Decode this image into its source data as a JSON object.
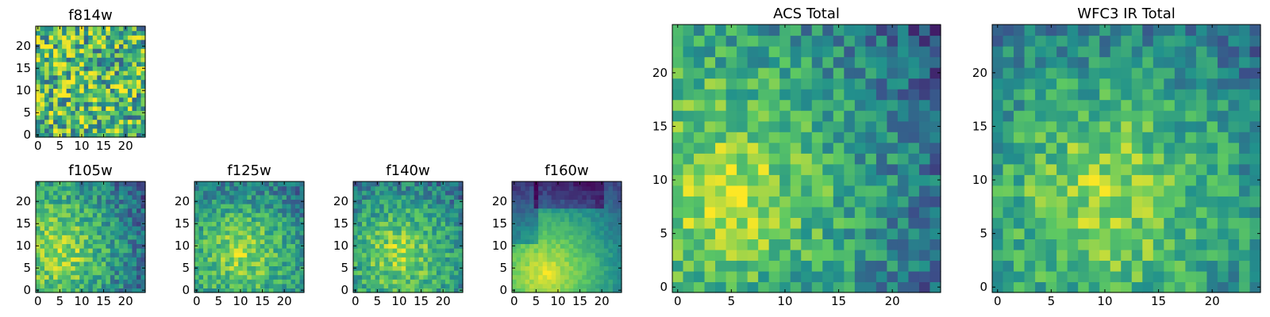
{
  "colormap": [
    "#440154",
    "#3b528b",
    "#21918c",
    "#5ec962",
    "#fde725"
  ],
  "frame_color": "#000000",
  "chart_data": [
    {
      "type": "heatmap",
      "title": "f814w",
      "size": 25,
      "seed": 11,
      "field": "noise",
      "xticks": [
        0,
        5,
        10,
        15,
        20
      ],
      "yticks": [
        0,
        5,
        10,
        15,
        20
      ],
      "xlim": [
        -0.5,
        24.5
      ],
      "ylim": [
        -0.5,
        24.5
      ]
    },
    {
      "type": "heatmap",
      "title": "f105w",
      "size": 25,
      "seed": 23,
      "field": "blob_lowleft",
      "xticks": [
        0,
        5,
        10,
        15,
        20
      ],
      "yticks": [
        0,
        5,
        10,
        15,
        20
      ],
      "xlim": [
        -0.5,
        24.5
      ],
      "ylim": [
        -0.5,
        24.5
      ]
    },
    {
      "type": "heatmap",
      "title": "f125w",
      "size": 25,
      "seed": 37,
      "field": "blob_center",
      "xticks": [
        0,
        5,
        10,
        15,
        20
      ],
      "yticks": [
        0,
        5,
        10,
        15,
        20
      ],
      "xlim": [
        -0.5,
        24.5
      ],
      "ylim": [
        -0.5,
        24.5
      ]
    },
    {
      "type": "heatmap",
      "title": "f140w",
      "size": 25,
      "seed": 41,
      "field": "blob_center",
      "xticks": [
        0,
        5,
        10,
        15,
        20
      ],
      "yticks": [
        0,
        5,
        10,
        15,
        20
      ],
      "xlim": [
        -0.5,
        24.5
      ],
      "ylim": [
        -0.5,
        24.5
      ]
    },
    {
      "type": "heatmap",
      "title": "f160w",
      "size": 25,
      "seed": 53,
      "field": "smooth_diag",
      "xticks": [
        0,
        5,
        10,
        15,
        20
      ],
      "yticks": [
        0,
        5,
        10,
        15,
        20
      ],
      "xlim": [
        -0.5,
        24.5
      ],
      "ylim": [
        -0.5,
        24.5
      ]
    },
    {
      "type": "heatmap",
      "title": "ACS Total",
      "size": 25,
      "seed": 67,
      "field": "blob_lowleft",
      "xticks": [
        0,
        5,
        10,
        15,
        20
      ],
      "yticks": [
        0,
        5,
        10,
        15,
        20
      ],
      "xlim": [
        -0.5,
        24.5
      ],
      "ylim": [
        -0.5,
        24.5
      ]
    },
    {
      "type": "heatmap",
      "title": "WFC3 IR Total",
      "size": 25,
      "seed": 79,
      "field": "blob_center",
      "xticks": [
        0,
        5,
        10,
        15,
        20
      ],
      "yticks": [
        0,
        5,
        10,
        15,
        20
      ],
      "xlim": [
        -0.5,
        24.5
      ],
      "ylim": [
        -0.5,
        24.5
      ]
    }
  ]
}
